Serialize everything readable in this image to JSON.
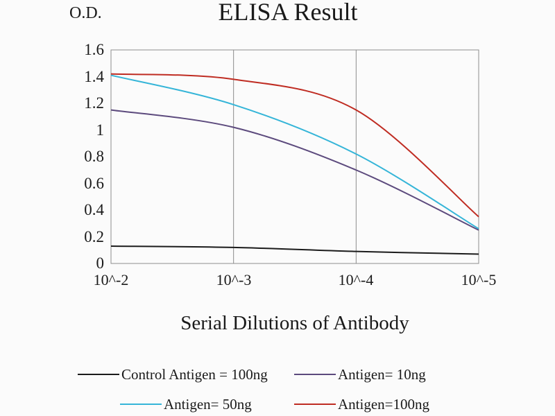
{
  "chart_data": {
    "type": "line",
    "title": "ELISA Result",
    "ylabel": "O.D.",
    "xlabel": "Serial Dilutions of Antibody",
    "x_tick_labels": [
      "10^-2",
      "10^-3",
      "10^-4",
      "10^-5"
    ],
    "y_tick_labels": [
      "1.6",
      "1.4",
      "1.2",
      "1",
      "0.8",
      "0.6",
      "0.4",
      "0.2",
      "0"
    ],
    "ylim": [
      0,
      1.6
    ],
    "grid": "vertical-only",
    "legend_position": "bottom",
    "series": [
      {
        "name": "Control Antigen = 100ng",
        "color": "#1b1b1b",
        "values": [
          0.13,
          0.12,
          0.09,
          0.07
        ]
      },
      {
        "name": "Antigen= 10ng",
        "color": "#5c4a7d",
        "values": [
          1.15,
          1.02,
          0.7,
          0.25
        ]
      },
      {
        "name": "Antigen= 50ng",
        "color": "#35b5d8",
        "values": [
          1.41,
          1.19,
          0.82,
          0.26
        ]
      },
      {
        "name": "Antigen=100ng",
        "color": "#bf2c22",
        "values": [
          1.42,
          1.38,
          1.15,
          0.35
        ]
      }
    ]
  }
}
